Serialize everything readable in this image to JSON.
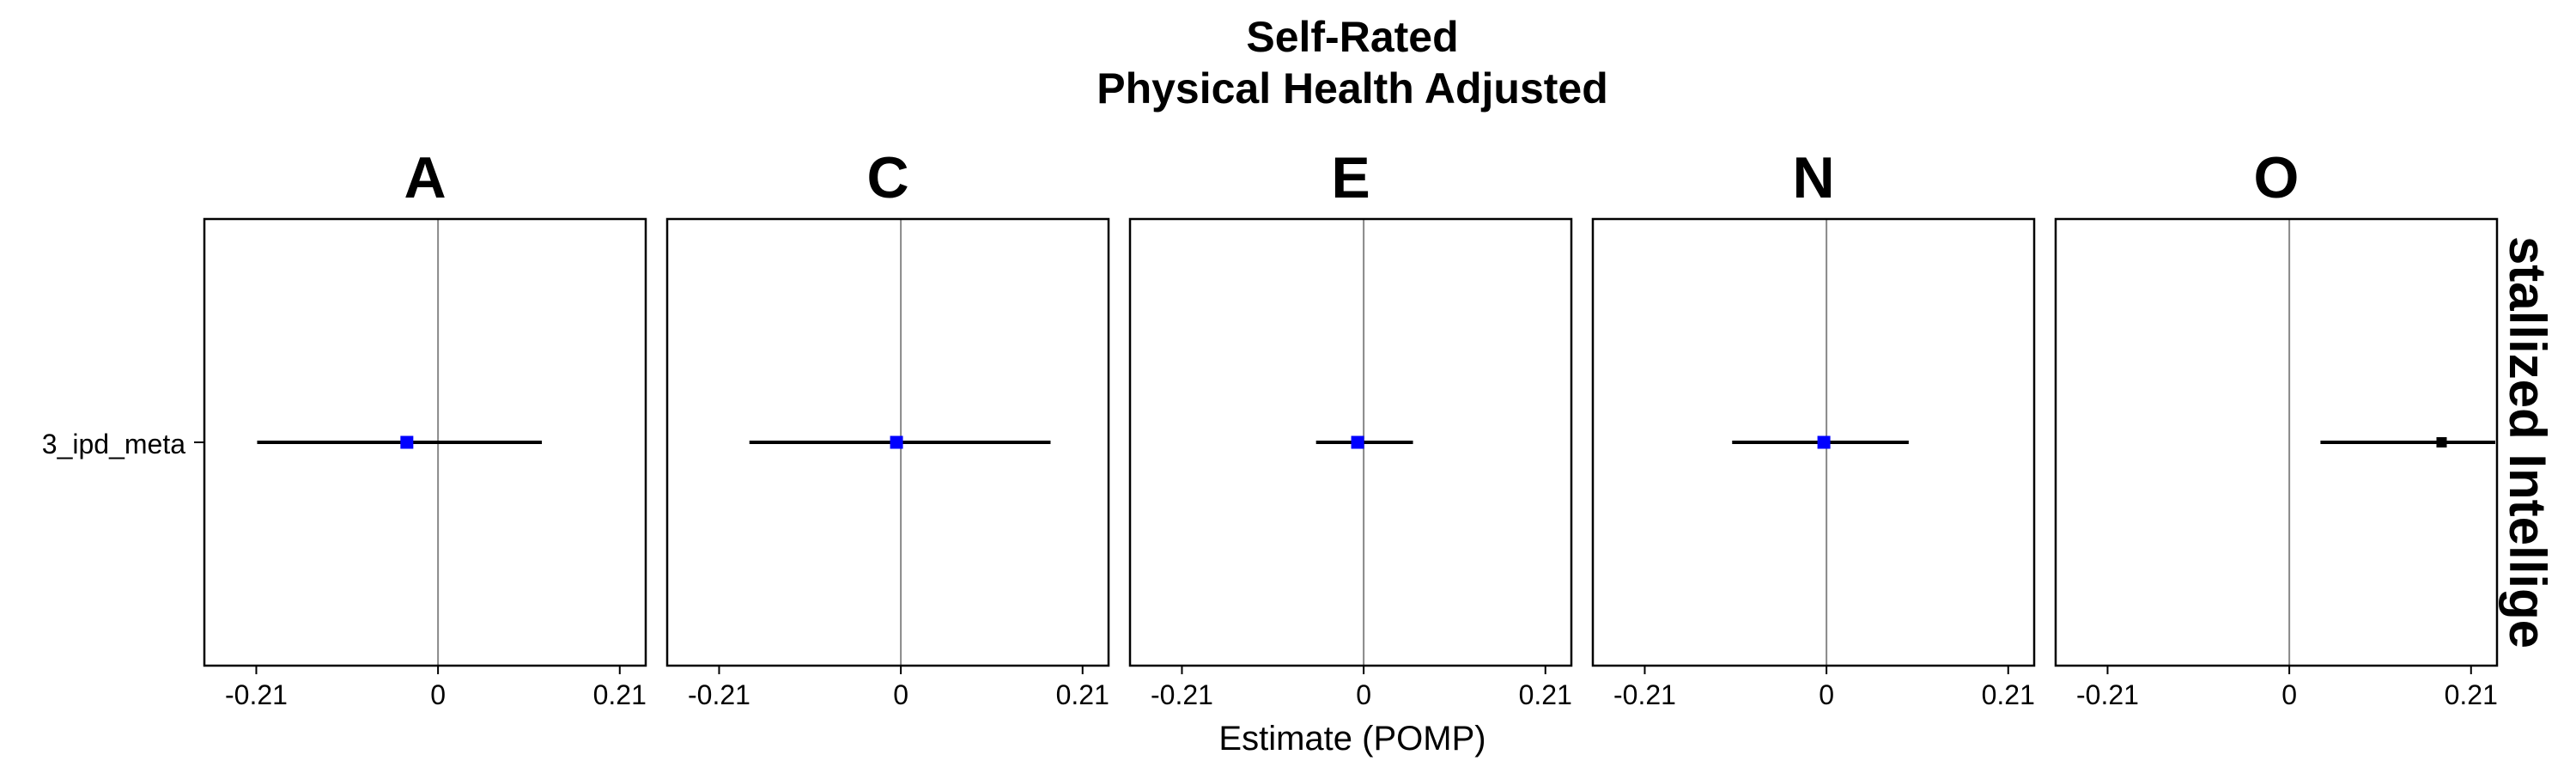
{
  "chart_data": {
    "type": "forest",
    "title_line1": "Self-Rated",
    "title_line2": "Physical Health Adjusted",
    "xlabel": "Estimate (POMP)",
    "row_label": "3_ipd_meta",
    "strip_label": "stallized Intellige",
    "xlim": [
      -0.27,
      0.24
    ],
    "x_ticks": [
      -0.21,
      0,
      0.21
    ],
    "x_tick_labels": [
      "-0.21",
      "0",
      "0.21"
    ],
    "zero_line_color": "#888888",
    "point_color_sig": "#0000ff",
    "point_color_nonsig": "#000000",
    "panels": [
      {
        "name": "A",
        "estimate": -0.036,
        "lower": -0.209,
        "upper": 0.12,
        "point_color": "#0000ff"
      },
      {
        "name": "C",
        "estimate": -0.005,
        "lower": -0.175,
        "upper": 0.173,
        "point_color": "#0000ff"
      },
      {
        "name": "E",
        "estimate": -0.007,
        "lower": -0.055,
        "upper": 0.057,
        "point_color": "#0000ff"
      },
      {
        "name": "N",
        "estimate": -0.003,
        "lower": -0.109,
        "upper": 0.095,
        "point_color": "#0000ff"
      },
      {
        "name": "O",
        "estimate": 0.176,
        "lower": 0.036,
        "upper": 0.246,
        "point_color": "#000000"
      }
    ]
  }
}
